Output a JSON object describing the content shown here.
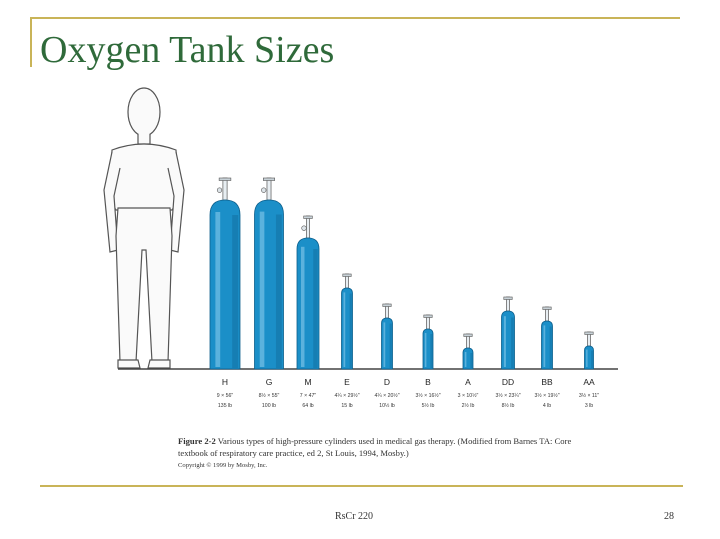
{
  "slide": {
    "title": "Oxygen Tank Sizes",
    "footer_course": "RsCr 220",
    "page_number": "28"
  },
  "figure": {
    "caption_label": "Figure 2-2",
    "caption_text": "Various types of high-pressure cylinders used in medical gas therapy. (Modified from Barnes TA: Core textbook of respiratory care practice, ed 2, St Louis, 1994, Mosby.)",
    "copyright": "Copyright © 1999 by Mosby, Inc."
  },
  "colors": {
    "tank": "#1b8fc8",
    "tank_highlight": "#8fd0ef",
    "tank_shadow": "#0d5f8c",
    "accent_rule": "#c9b458",
    "title": "#2f6a3a"
  },
  "tanks": [
    {
      "letter": "H",
      "dims": "9 × 56\"",
      "weight": "135 lb"
    },
    {
      "letter": "G",
      "dims": "8½ × 55\"",
      "weight": "100 lb"
    },
    {
      "letter": "M",
      "dims": "7 × 47\"",
      "weight": "64 lb"
    },
    {
      "letter": "E",
      "dims": "4¼ × 29½\"",
      "weight": "15 lb"
    },
    {
      "letter": "D",
      "dims": "4¼ × 20½\"",
      "weight": "10½ lb"
    },
    {
      "letter": "B",
      "dims": "3½ × 16½\"",
      "weight": "5½ lb"
    },
    {
      "letter": "A",
      "dims": "3 × 10½\"",
      "weight": "2½ lb"
    },
    {
      "letter": "DD",
      "dims": "3½ × 23¼\"",
      "weight": "8½ lb"
    },
    {
      "letter": "BB",
      "dims": "3½ × 19½\"",
      "weight": "4 lb"
    },
    {
      "letter": "AA",
      "dims": "3½ × 11\"",
      "weight": "3 lb"
    }
  ]
}
